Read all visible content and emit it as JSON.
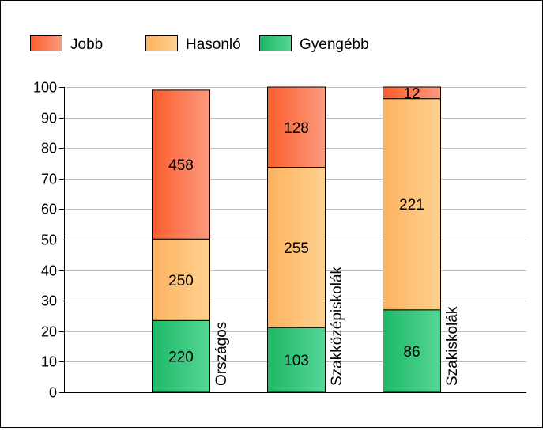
{
  "chart_data": {
    "type": "bar",
    "stacked": true,
    "normalized": true,
    "categories": [
      "Országos",
      "Szakközépiskolák",
      "Szakiskolák"
    ],
    "series": [
      {
        "name": "Gyengébb",
        "values": [
          220,
          103,
          86
        ],
        "percent": [
          23.5,
          21.2,
          27.0
        ],
        "color_from": "#1db866",
        "color_to": "#56d695"
      },
      {
        "name": "Hasonló",
        "values": [
          250,
          255,
          221
        ],
        "percent": [
          26.7,
          52.5,
          69.2
        ],
        "color_from": "#fdb25f",
        "color_to": "#fed190"
      },
      {
        "name": "Jobb",
        "values": [
          458,
          128,
          12
        ],
        "percent": [
          48.8,
          26.3,
          3.8
        ],
        "color_from": "#fb5d2c",
        "color_to": "#fd9a7f"
      }
    ],
    "legend": [
      "Jobb",
      "Hasonló",
      "Gyengébb"
    ],
    "legend_position": "top-left",
    "ylim": [
      0,
      100
    ],
    "yticks": [
      "0",
      "10",
      "20",
      "30",
      "40",
      "50",
      "60",
      "70",
      "80",
      "90",
      "100"
    ],
    "grid": true,
    "title": "",
    "xlabel": "",
    "ylabel": ""
  }
}
